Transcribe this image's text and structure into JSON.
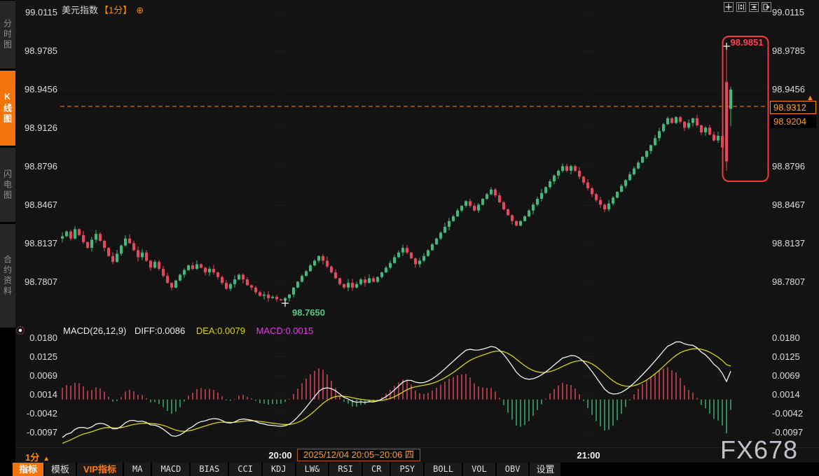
{
  "title": {
    "symbol": "美元指数",
    "period": "【1分】"
  },
  "icons": {
    "circle_plus": "⊕",
    "up_arrow": "▲"
  },
  "sidebar": {
    "items": [
      {
        "label": "分时图",
        "active": false
      },
      {
        "label": "K线图",
        "active": true
      },
      {
        "label": "闪电图",
        "active": false
      },
      {
        "label": "合约资料",
        "active": false
      }
    ]
  },
  "colors": {
    "background": "#131313",
    "candle_up": "#3fb97d",
    "candle_down": "#e8485e",
    "accent_orange": "#ff8a00",
    "diff_line": "#f2f2f2",
    "dea_line": "#d6d600",
    "macd_label": "#e23ee2",
    "highlight_box": "#f23c34",
    "high_label": "#ff4050",
    "low_label": "#53c98b"
  },
  "labels": {
    "current_price": "98.9312",
    "secondary_price": "98.9204",
    "high": "98.9851",
    "low": "98.7650"
  },
  "macd_header": {
    "name": "MACD(26,12,9)",
    "diff": "DIFF:0.0086",
    "dea": "DEA:0.0079",
    "macd": "MACD:0.0015"
  },
  "time_axis": {
    "period_label": "1分",
    "tick1": "20:00",
    "session_label": "2025/12/04 20:05~20:06 四",
    "tick2": "21:00"
  },
  "watermark": "FX678",
  "toolbar": {
    "tabs": [
      {
        "label": "指标",
        "style": "active"
      },
      {
        "label": "模板",
        "style": ""
      },
      {
        "label": "VIP指标",
        "style": "vip"
      },
      {
        "label": "MA",
        "style": "mono"
      },
      {
        "label": "MACD",
        "style": "mono"
      },
      {
        "label": "BIAS",
        "style": "mono"
      },
      {
        "label": "CCI",
        "style": "mono"
      },
      {
        "label": "KDJ",
        "style": "mono"
      },
      {
        "label": "LW&",
        "style": "mono"
      },
      {
        "label": "RSI",
        "style": "mono"
      },
      {
        "label": "CR",
        "style": "mono"
      },
      {
        "label": "PSY",
        "style": "mono"
      },
      {
        "label": "BOLL",
        "style": "mono"
      },
      {
        "label": "VOL",
        "style": "mono"
      },
      {
        "label": "OBV",
        "style": "mono"
      },
      {
        "label": "设置",
        "style": ""
      }
    ]
  },
  "chart_data": {
    "type": "candlestick",
    "symbol": "美元指数",
    "interval": "1分",
    "price_axis_ticks": [
      "99.0115",
      "98.9785",
      "98.9456",
      "98.9126",
      "98.8796",
      "98.8467",
      "98.8137",
      "98.7807"
    ],
    "macd_axis_ticks": [
      "0.0180",
      "0.0125",
      "0.0069",
      "0.0014",
      "-0.0042",
      "-0.0097"
    ],
    "x_axis_ticks": [
      "20:00",
      "21:00"
    ],
    "session_label": "2025/12/04 20:05~20:06 四",
    "current_price": 98.9312,
    "secondary_price": 98.9204,
    "high": 98.9851,
    "low": 98.765,
    "macd_params": {
      "slow": 26,
      "fast": 12,
      "signal": 9,
      "diff": 0.0086,
      "dea": 0.0079,
      "macd": 0.0015
    },
    "warmup_closes": [
      98.906,
      98.9,
      98.903,
      98.896,
      98.89,
      98.893,
      98.886,
      98.88,
      98.883,
      98.876,
      98.87,
      98.873,
      98.866,
      98.86,
      98.863,
      98.856,
      98.85,
      98.853,
      98.846,
      98.84,
      98.843,
      98.837,
      98.84,
      98.833,
      98.828,
      98.831,
      98.825,
      98.829,
      98.824,
      98.827,
      98.822,
      98.826,
      98.821,
      98.824,
      98.819,
      98.822,
      98.818,
      98.821,
      98.817,
      98.818
    ],
    "closes": [
      98.82,
      98.824,
      98.818,
      98.826,
      98.821,
      98.815,
      98.81,
      98.817,
      98.822,
      98.816,
      98.81,
      98.803,
      98.798,
      98.805,
      98.812,
      98.818,
      98.814,
      98.808,
      98.802,
      98.806,
      98.799,
      98.793,
      98.798,
      98.792,
      98.786,
      98.78,
      98.776,
      98.782,
      98.787,
      98.791,
      98.795,
      98.792,
      98.796,
      98.793,
      98.789,
      98.792,
      98.789,
      98.785,
      98.78,
      98.775,
      98.779,
      98.783,
      98.787,
      98.783,
      98.778,
      98.776,
      98.772,
      98.769,
      98.77,
      98.767,
      98.768,
      98.766,
      98.765,
      98.767,
      98.77,
      98.776,
      98.781,
      98.786,
      98.79,
      98.795,
      98.799,
      98.803,
      98.799,
      98.794,
      98.789,
      98.784,
      98.779,
      98.776,
      98.78,
      98.776,
      98.779,
      98.783,
      98.78,
      98.784,
      98.781,
      98.785,
      98.789,
      98.793,
      98.797,
      98.802,
      98.806,
      98.81,
      98.806,
      98.801,
      98.796,
      98.799,
      98.803,
      98.808,
      98.813,
      98.818,
      98.823,
      98.828,
      98.833,
      98.837,
      98.842,
      98.846,
      98.85,
      98.846,
      98.842,
      98.847,
      98.852,
      98.856,
      98.86,
      98.855,
      98.849,
      98.843,
      98.838,
      98.833,
      98.829,
      98.833,
      98.837,
      98.842,
      98.847,
      98.852,
      98.857,
      98.862,
      98.867,
      98.872,
      98.876,
      98.88,
      98.876,
      98.88,
      98.876,
      98.871,
      98.866,
      98.861,
      98.856,
      98.851,
      98.847,
      98.843,
      98.848,
      98.853,
      98.858,
      98.863,
      98.868,
      98.873,
      98.878,
      98.883,
      98.888,
      98.893,
      98.898,
      98.904,
      98.91,
      98.916,
      98.921,
      98.917,
      98.922,
      98.918,
      98.913,
      98.917,
      98.921,
      98.915,
      98.909,
      98.913,
      98.907,
      98.902,
      98.906,
      98.896,
      98.884,
      98.9456
    ],
    "overrides": {
      "52": {
        "low": 98.765
      },
      "158": {
        "open": 98.952,
        "high": 98.9851,
        "low": 98.876,
        "close": 98.884
      },
      "159": {
        "open": 98.929,
        "high": 98.948,
        "low": 98.914,
        "close": 98.9456
      }
    },
    "marker_low_index": 52,
    "marker_high_index": 158
  }
}
